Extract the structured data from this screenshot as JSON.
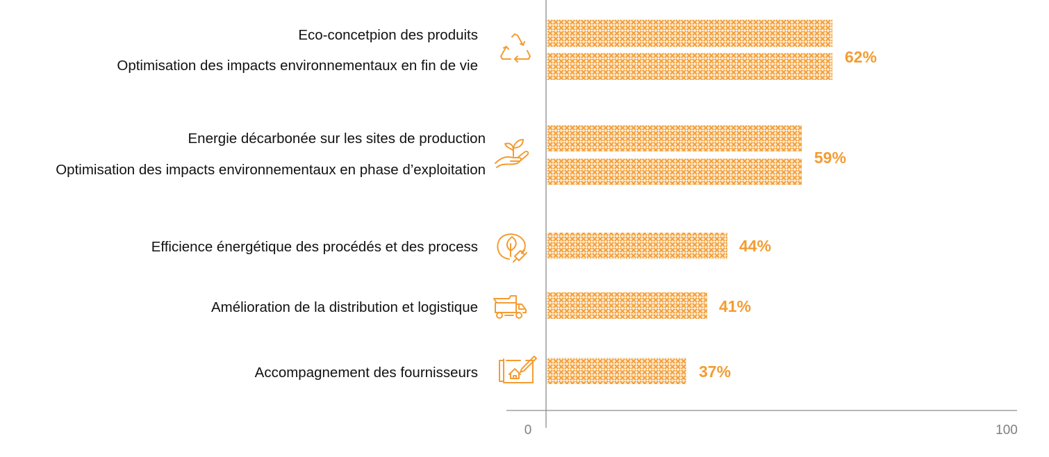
{
  "colors": {
    "accent": "#F39C32",
    "axis": "#8c8c8c",
    "text": "#111111",
    "tick": "#7f7f7f"
  },
  "chart_data": {
    "type": "bar",
    "orientation": "horizontal",
    "title": "",
    "xlabel": "",
    "ylabel": "",
    "xlim": [
      0,
      100
    ],
    "x_ticks": [
      "0",
      "100"
    ],
    "grid": false,
    "legend": "none",
    "bar_pattern": "crosshatch",
    "groups": [
      {
        "icon": "recycle-icon",
        "value_label": "62%",
        "value": 62,
        "bars": [
          {
            "label": "Eco-concetpion des produits",
            "axis_value": 60.8
          },
          {
            "label": "Optimisation des impacts environnementaux en fin de vie",
            "axis_value": 60.8
          }
        ]
      },
      {
        "icon": "hand-plant-icon",
        "value_label": "59%",
        "value": 59,
        "bars": [
          {
            "label": "Energie décarbonée sur les sites de production",
            "axis_value": 54.3
          },
          {
            "label": "Optimisation des impacts environnementaux en phase d’exploitation",
            "axis_value": 54.3
          }
        ]
      },
      {
        "icon": "leaf-plug-icon",
        "value_label": "44%",
        "value": 44,
        "bars": [
          {
            "label": "Efficience énergétique des procédés et des process",
            "axis_value": 38.5
          }
        ]
      },
      {
        "icon": "truck-icon",
        "value_label": "41%",
        "value": 41,
        "bars": [
          {
            "label": "Amélioration de la distribution et logistique",
            "axis_value": 34.2
          }
        ]
      },
      {
        "icon": "blueprint-house-icon",
        "value_label": "37%",
        "value": 37,
        "bars": [
          {
            "label": "Accompagnement des fournisseurs",
            "axis_value": 29.8
          }
        ]
      }
    ]
  }
}
